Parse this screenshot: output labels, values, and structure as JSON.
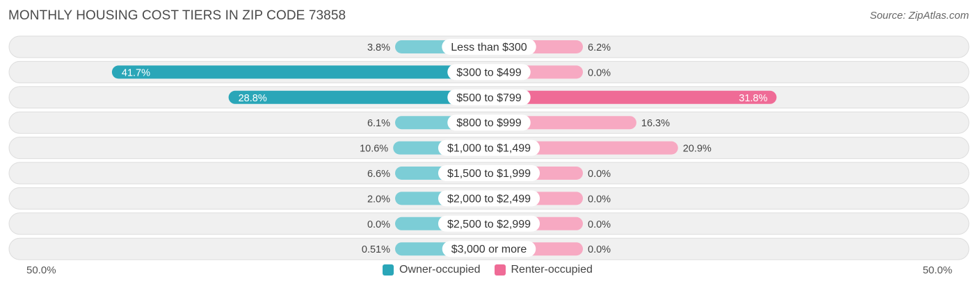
{
  "title": "MONTHLY HOUSING COST TIERS IN ZIP CODE 73858",
  "source": "Source: ZipAtlas.com",
  "axis": {
    "left_label": "50.0%",
    "right_label": "50.0%",
    "max": 50
  },
  "colors": {
    "owner_dark": "#2aa6b8",
    "owner_light": "#7ccdd6",
    "renter_dark": "#ef6b96",
    "renter_light": "#f7a9c2",
    "row_bg": "#f0f0f0",
    "row_border": "#dddddd"
  },
  "legend": {
    "owner": "Owner-occupied",
    "renter": "Renter-occupied"
  },
  "chart_data": {
    "type": "bar",
    "title": "MONTHLY HOUSING COST TIERS IN ZIP CODE 73858",
    "xlim": [
      -50,
      50
    ],
    "categories": [
      "Less than $300",
      "$300 to $499",
      "$500 to $799",
      "$800 to $999",
      "$1,000 to $1,499",
      "$1,500 to $1,999",
      "$2,000 to $2,499",
      "$2,500 to $2,999",
      "$3,000 or more"
    ],
    "series": [
      {
        "name": "Owner-occupied",
        "values": [
          3.8,
          41.7,
          28.8,
          6.1,
          10.6,
          6.6,
          2.0,
          0.0,
          0.51
        ],
        "labels": [
          "3.8%",
          "41.7%",
          "28.8%",
          "6.1%",
          "10.6%",
          "6.6%",
          "2.0%",
          "0.0%",
          "0.51%"
        ]
      },
      {
        "name": "Renter-occupied",
        "values": [
          6.2,
          0.0,
          31.8,
          16.3,
          20.9,
          0.0,
          0.0,
          0.0,
          0.0
        ],
        "labels": [
          "6.2%",
          "0.0%",
          "31.8%",
          "16.3%",
          "20.9%",
          "0.0%",
          "0.0%",
          "0.0%",
          "0.0%"
        ]
      }
    ]
  }
}
